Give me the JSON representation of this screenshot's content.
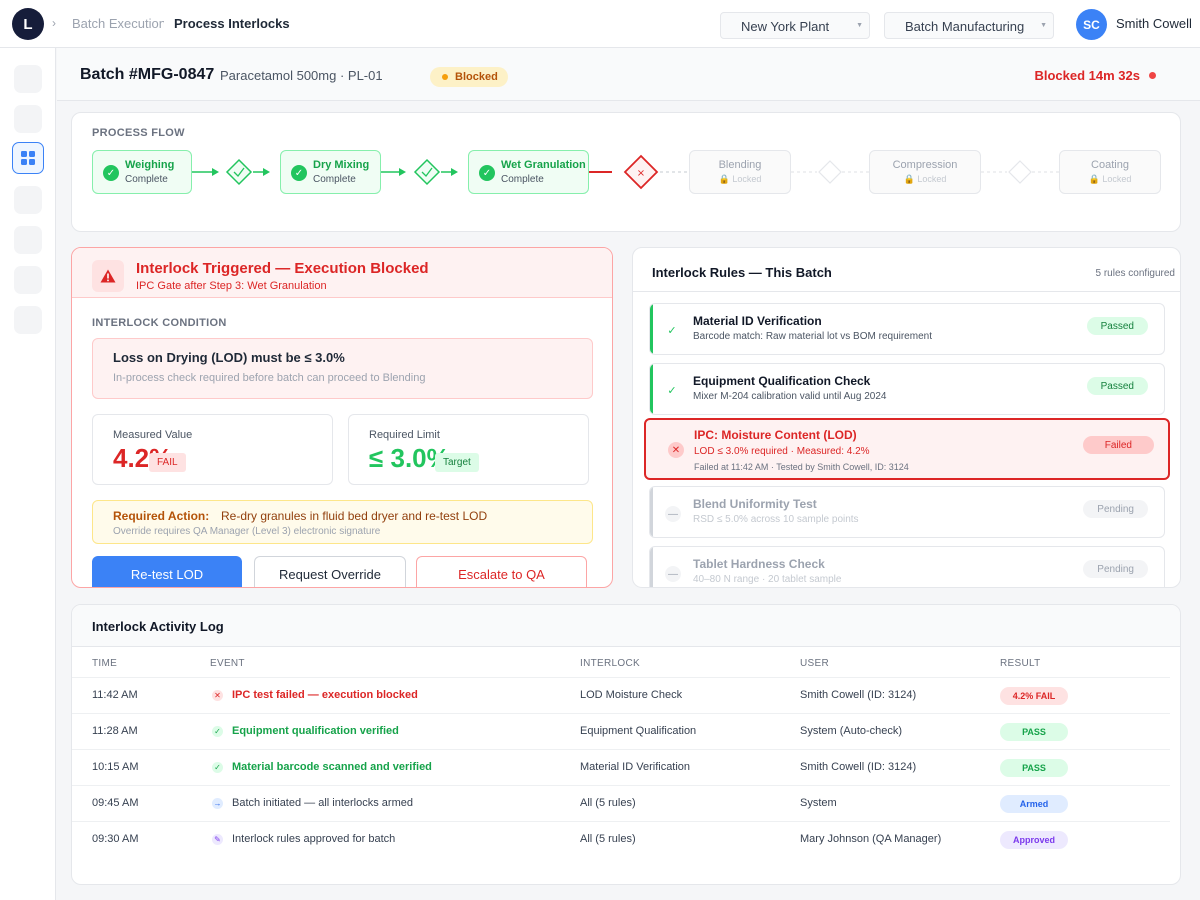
{
  "app": {
    "logo_letter": "L"
  },
  "breadcrumb": {
    "separator": "›",
    "parent": "Batch Execution",
    "current": "Process Interlocks"
  },
  "filters": {
    "plant": "New York Plant",
    "area": "Batch Manufacturing"
  },
  "user": {
    "initials": "SC",
    "name": "Smith Cowell"
  },
  "batch": {
    "id": "Batch #MFG-0847",
    "subtitle": "Paracetamol 500mg · PL-01",
    "badge": "Blocked",
    "blocked_for": "Blocked 14m 32s"
  },
  "flow": {
    "label": "PROCESS FLOW",
    "steps": [
      {
        "name": "Weighing",
        "status": "Complete"
      },
      {
        "name": "Dry Mixing",
        "status": "Complete"
      },
      {
        "name": "Wet Granulation",
        "status": "Complete"
      },
      {
        "name": "Blending",
        "status": "🔒 Locked"
      },
      {
        "name": "Compression",
        "status": "🔒 Locked"
      },
      {
        "name": "Coating",
        "status": "🔒 Locked"
      }
    ]
  },
  "alert": {
    "title": "Interlock Triggered — Execution Blocked",
    "subtitle": "IPC Gate after Step 3: Wet Granulation",
    "condition_label": "INTERLOCK CONDITION",
    "condition_title": "Loss on Drying (LOD) must be ≤ 3.0%",
    "condition_text": "In-process check required before batch can proceed to Blending",
    "measured_label": "Measured Value",
    "measured_value": "4.2%",
    "measured_tag": "FAIL",
    "limit_label": "Required Limit",
    "limit_value": "≤ 3.0%",
    "limit_tag": "Target",
    "action_label": "Required Action:",
    "action_text": "Re-dry granules in fluid bed dryer and re-test LOD",
    "action_note": "Override requires QA Manager (Level 3) electronic signature",
    "buttons": {
      "retest": "Re-test LOD",
      "override": "Request Override",
      "escalate": "Escalate to QA"
    }
  },
  "rules": {
    "title": "Interlock Rules — This Batch",
    "count": "5 rules configured",
    "items": [
      {
        "name": "Material ID Verification",
        "desc": "Barcode match: Raw material lot vs BOM requirement",
        "badge": "Passed"
      },
      {
        "name": "Equipment Qualification Check",
        "desc": "Mixer M-204 calibration valid until Aug 2024",
        "badge": "Passed"
      },
      {
        "name": "IPC: Moisture Content (LOD)",
        "desc": "LOD ≤ 3.0% required · Measured: 4.2%",
        "meta": "Failed at 11:42 AM · Tested by Smith Cowell, ID: 3124",
        "badge": "Failed"
      },
      {
        "name": "Blend Uniformity Test",
        "desc": "RSD ≤ 5.0% across 10 sample points",
        "badge": "Pending"
      },
      {
        "name": "Tablet Hardness Check",
        "desc": "40–80 N range · 20 tablet sample",
        "badge": "Pending"
      }
    ]
  },
  "log": {
    "title": "Interlock Activity Log",
    "columns": {
      "time": "TIME",
      "event": "EVENT",
      "interlock": "INTERLOCK",
      "user": "USER",
      "result": "RESULT"
    },
    "rows": [
      {
        "time": "11:42 AM",
        "event": "IPC test failed — execution blocked",
        "interlock": "LOD Moisture Check",
        "user": "Smith Cowell (ID: 3124)",
        "result": "4.2% FAIL"
      },
      {
        "time": "11:28 AM",
        "event": "Equipment qualification verified",
        "interlock": "Equipment Qualification",
        "user": "System (Auto-check)",
        "result": "PASS"
      },
      {
        "time": "10:15 AM",
        "event": "Material barcode scanned and verified",
        "interlock": "Material ID Verification",
        "user": "Smith Cowell (ID: 3124)",
        "result": "PASS"
      },
      {
        "time": "09:45 AM",
        "event": "Batch initiated — all interlocks armed",
        "interlock": "All (5 rules)",
        "user": "System",
        "result": "Armed"
      },
      {
        "time": "09:30 AM",
        "event": "Interlock rules approved for batch",
        "interlock": "All (5 rules)",
        "user": "Mary Johnson (QA Manager)",
        "result": "Approved"
      }
    ]
  },
  "colors": {
    "accent": "#3b82f6",
    "success": "#22c55e",
    "danger": "#dc2626",
    "warning": "#f59e0b",
    "approved": "#7c3aed"
  }
}
